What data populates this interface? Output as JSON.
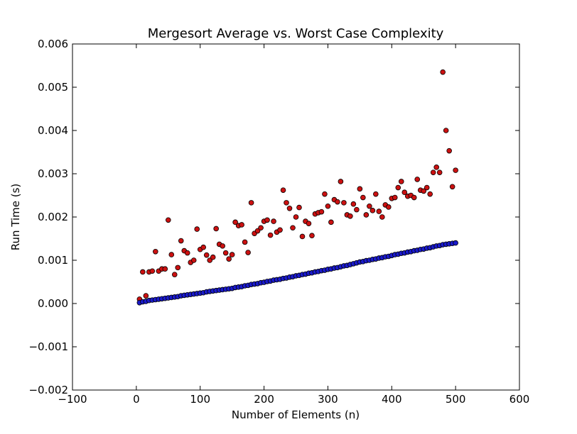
{
  "chart_data": {
    "type": "scatter",
    "title": "Mergesort Average vs. Worst Case Complexity",
    "xlabel": "Number of Elements (n)",
    "ylabel": "Run Time (s)",
    "xlim": [
      -100,
      600
    ],
    "ylim": [
      -0.002,
      0.006
    ],
    "x_ticks": [
      "−100",
      "0",
      "100",
      "200",
      "300",
      "400",
      "500",
      "600"
    ],
    "y_ticks": [
      "−0.002",
      "−0.001",
      "0.000",
      "0.001",
      "0.002",
      "0.003",
      "0.004",
      "0.005",
      "0.006"
    ],
    "grid": false,
    "legend": "none",
    "series": [
      {
        "color": "#cc1111",
        "points": [
          [
            5,
            0.0001
          ],
          [
            10,
            0.00073
          ],
          [
            15,
            0.00018
          ],
          [
            20,
            0.00073
          ],
          [
            25,
            0.00075
          ],
          [
            30,
            0.0012
          ],
          [
            35,
            0.00075
          ],
          [
            40,
            0.0008
          ],
          [
            45,
            0.0008
          ],
          [
            50,
            0.00193
          ],
          [
            55,
            0.00113
          ],
          [
            60,
            0.00067
          ],
          [
            65,
            0.00083
          ],
          [
            70,
            0.00145
          ],
          [
            75,
            0.00122
          ],
          [
            80,
            0.00117
          ],
          [
            85,
            0.00095
          ],
          [
            90,
            0.001
          ],
          [
            95,
            0.00172
          ],
          [
            100,
            0.00125
          ],
          [
            105,
            0.0013
          ],
          [
            110,
            0.00112
          ],
          [
            115,
            0.001
          ],
          [
            120,
            0.00107
          ],
          [
            125,
            0.00173
          ],
          [
            130,
            0.00137
          ],
          [
            135,
            0.00133
          ],
          [
            140,
            0.00117
          ],
          [
            145,
            0.00103
          ],
          [
            150,
            0.00113
          ],
          [
            155,
            0.00188
          ],
          [
            160,
            0.0018
          ],
          [
            165,
            0.00182
          ],
          [
            170,
            0.00142
          ],
          [
            175,
            0.00118
          ],
          [
            180,
            0.00233
          ],
          [
            185,
            0.00162
          ],
          [
            190,
            0.00168
          ],
          [
            195,
            0.00175
          ],
          [
            200,
            0.0019
          ],
          [
            205,
            0.00193
          ],
          [
            210,
            0.00158
          ],
          [
            215,
            0.0019
          ],
          [
            220,
            0.00165
          ],
          [
            225,
            0.0017
          ],
          [
            230,
            0.00262
          ],
          [
            235,
            0.00233
          ],
          [
            240,
            0.0022
          ],
          [
            245,
            0.00175
          ],
          [
            250,
            0.002
          ],
          [
            255,
            0.00222
          ],
          [
            260,
            0.00155
          ],
          [
            265,
            0.0019
          ],
          [
            270,
            0.00185
          ],
          [
            275,
            0.00157
          ],
          [
            280,
            0.00207
          ],
          [
            285,
            0.0021
          ],
          [
            290,
            0.00212
          ],
          [
            295,
            0.00253
          ],
          [
            300,
            0.00225
          ],
          [
            305,
            0.00188
          ],
          [
            310,
            0.0024
          ],
          [
            315,
            0.00235
          ],
          [
            320,
            0.00282
          ],
          [
            325,
            0.00233
          ],
          [
            330,
            0.00205
          ],
          [
            335,
            0.00202
          ],
          [
            340,
            0.0023
          ],
          [
            345,
            0.00217
          ],
          [
            350,
            0.00265
          ],
          [
            355,
            0.00245
          ],
          [
            360,
            0.00205
          ],
          [
            365,
            0.00225
          ],
          [
            370,
            0.00215
          ],
          [
            375,
            0.00253
          ],
          [
            380,
            0.00213
          ],
          [
            385,
            0.002
          ],
          [
            390,
            0.00228
          ],
          [
            395,
            0.00223
          ],
          [
            400,
            0.00243
          ],
          [
            405,
            0.00245
          ],
          [
            410,
            0.00268
          ],
          [
            415,
            0.00282
          ],
          [
            420,
            0.00257
          ],
          [
            425,
            0.00248
          ],
          [
            430,
            0.0025
          ],
          [
            435,
            0.00245
          ],
          [
            440,
            0.00287
          ],
          [
            445,
            0.00262
          ],
          [
            450,
            0.0026
          ],
          [
            455,
            0.00268
          ],
          [
            460,
            0.00253
          ],
          [
            465,
            0.00303
          ],
          [
            470,
            0.00315
          ],
          [
            475,
            0.00303
          ],
          [
            480,
            0.00535
          ],
          [
            485,
            0.004
          ],
          [
            490,
            0.00353
          ],
          [
            495,
            0.0027
          ],
          [
            500,
            0.00308
          ]
        ]
      },
      {
        "color": "#1a1acc",
        "points": [
          [
            5,
            2e-05
          ],
          [
            10,
            4e-05
          ],
          [
            15,
            5e-05
          ],
          [
            20,
            7e-05
          ],
          [
            25,
            8e-05
          ],
          [
            30,
            9e-05
          ],
          [
            35,
            0.0001
          ],
          [
            40,
            0.00011
          ],
          [
            45,
            0.00012
          ],
          [
            50,
            0.00013
          ],
          [
            55,
            0.00014
          ],
          [
            60,
            0.00015
          ],
          [
            65,
            0.00016
          ],
          [
            70,
            0.00018
          ],
          [
            75,
            0.00019
          ],
          [
            80,
            0.0002
          ],
          [
            85,
            0.00021
          ],
          [
            90,
            0.00022
          ],
          [
            95,
            0.00023
          ],
          [
            100,
            0.00024
          ],
          [
            105,
            0.00025
          ],
          [
            110,
            0.00027
          ],
          [
            115,
            0.00028
          ],
          [
            120,
            0.00029
          ],
          [
            125,
            0.0003
          ],
          [
            130,
            0.00031
          ],
          [
            135,
            0.00032
          ],
          [
            140,
            0.00033
          ],
          [
            145,
            0.00034
          ],
          [
            150,
            0.00035
          ],
          [
            155,
            0.00037
          ],
          [
            160,
            0.00038
          ],
          [
            165,
            0.00039
          ],
          [
            170,
            0.00041
          ],
          [
            175,
            0.00042
          ],
          [
            180,
            0.00044
          ],
          [
            185,
            0.00045
          ],
          [
            190,
            0.00046
          ],
          [
            195,
            0.00048
          ],
          [
            200,
            0.00049
          ],
          [
            205,
            0.00051
          ],
          [
            210,
            0.00052
          ],
          [
            215,
            0.00054
          ],
          [
            220,
            0.00055
          ],
          [
            225,
            0.00056
          ],
          [
            230,
            0.00058
          ],
          [
            235,
            0.00059
          ],
          [
            240,
            0.00061
          ],
          [
            245,
            0.00062
          ],
          [
            250,
            0.00064
          ],
          [
            255,
            0.00065
          ],
          [
            260,
            0.00067
          ],
          [
            265,
            0.00068
          ],
          [
            270,
            0.0007
          ],
          [
            275,
            0.00071
          ],
          [
            280,
            0.00073
          ],
          [
            285,
            0.00074
          ],
          [
            290,
            0.00076
          ],
          [
            295,
            0.00077
          ],
          [
            300,
            0.00079
          ],
          [
            305,
            0.0008
          ],
          [
            310,
            0.00082
          ],
          [
            315,
            0.00083
          ],
          [
            320,
            0.00085
          ],
          [
            325,
            0.00087
          ],
          [
            330,
            0.00088
          ],
          [
            335,
            0.0009
          ],
          [
            340,
            0.00092
          ],
          [
            345,
            0.00094
          ],
          [
            350,
            0.00096
          ],
          [
            355,
            0.00097
          ],
          [
            360,
            0.00099
          ],
          [
            365,
            0.001
          ],
          [
            370,
            0.00102
          ],
          [
            375,
            0.00103
          ],
          [
            380,
            0.00105
          ],
          [
            385,
            0.00106
          ],
          [
            390,
            0.00108
          ],
          [
            395,
            0.00109
          ],
          [
            400,
            0.00111
          ],
          [
            405,
            0.00113
          ],
          [
            410,
            0.00114
          ],
          [
            415,
            0.00116
          ],
          [
            420,
            0.00117
          ],
          [
            425,
            0.00119
          ],
          [
            430,
            0.0012
          ],
          [
            435,
            0.00122
          ],
          [
            440,
            0.00123
          ],
          [
            445,
            0.00125
          ],
          [
            450,
            0.00126
          ],
          [
            455,
            0.00128
          ],
          [
            460,
            0.00129
          ],
          [
            465,
            0.00131
          ],
          [
            470,
            0.00133
          ],
          [
            475,
            0.00134
          ],
          [
            480,
            0.00136
          ],
          [
            485,
            0.00137
          ],
          [
            490,
            0.00138
          ],
          [
            495,
            0.00139
          ],
          [
            500,
            0.0014
          ]
        ]
      }
    ]
  }
}
